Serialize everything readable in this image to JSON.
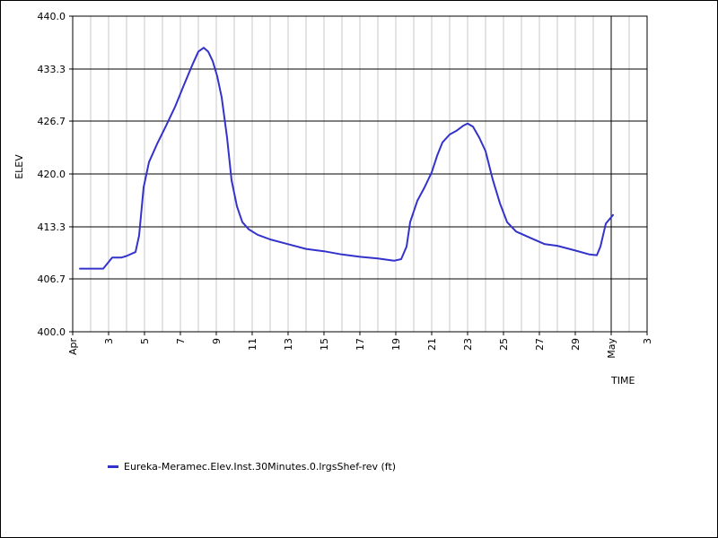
{
  "chart_data": {
    "type": "line",
    "xlabel": "TIME",
    "ylabel": "ELEV",
    "ylim": [
      400,
      440
    ],
    "xlim": [
      "Apr 1",
      "May 3"
    ],
    "yticks": [
      "400.0",
      "406.7",
      "413.3",
      "420.0",
      "426.7",
      "433.3",
      "440.0"
    ],
    "xticks": [
      "Apr",
      "3",
      "5",
      "7",
      "9",
      "11",
      "13",
      "15",
      "17",
      "19",
      "21",
      "23",
      "25",
      "27",
      "29",
      "May",
      "3"
    ],
    "grid": "on",
    "legend_position": "bottom-left",
    "series": [
      {
        "name": "Eureka-Meramec.Elev.Inst.30Minutes.0.lrgsShef-rev (ft)",
        "color": "#3333cc",
        "x": [
          1.4,
          2.7,
          3.2,
          3.7,
          4.0,
          4.5,
          4.7,
          4.95,
          5.25,
          5.7,
          6.2,
          6.7,
          7.2,
          7.7,
          8.0,
          8.3,
          8.55,
          8.8,
          9.05,
          9.3,
          9.6,
          9.85,
          10.15,
          10.45,
          10.8,
          11.3,
          12.0,
          13.0,
          14.0,
          15.0,
          16.0,
          17.0,
          18.0,
          18.9,
          19.3,
          19.6,
          19.8,
          20.2,
          20.6,
          21.0,
          21.3,
          21.6,
          22.0,
          22.4,
          22.75,
          23.0,
          23.3,
          23.65,
          24.0,
          24.4,
          24.8,
          25.2,
          25.7,
          26.5,
          27.3,
          28.0,
          29.0,
          29.8,
          30.2,
          30.4,
          30.7,
          31.1
        ],
        "y": [
          408.0,
          408.0,
          409.4,
          409.4,
          409.6,
          410.1,
          412.2,
          418.3,
          421.5,
          423.8,
          426.1,
          428.5,
          431.3,
          434.0,
          435.5,
          436.0,
          435.5,
          434.3,
          432.4,
          429.7,
          424.6,
          419.2,
          415.9,
          413.9,
          413.0,
          412.3,
          411.7,
          411.1,
          410.5,
          410.2,
          409.8,
          409.5,
          409.3,
          409.0,
          409.2,
          410.8,
          413.9,
          416.6,
          418.3,
          420.2,
          422.3,
          424.0,
          425.0,
          425.5,
          426.1,
          426.4,
          426.0,
          424.6,
          422.9,
          419.3,
          416.3,
          413.9,
          412.7,
          411.9,
          411.1,
          410.9,
          410.3,
          409.8,
          409.7,
          410.8,
          413.7,
          414.8
        ]
      }
    ]
  }
}
